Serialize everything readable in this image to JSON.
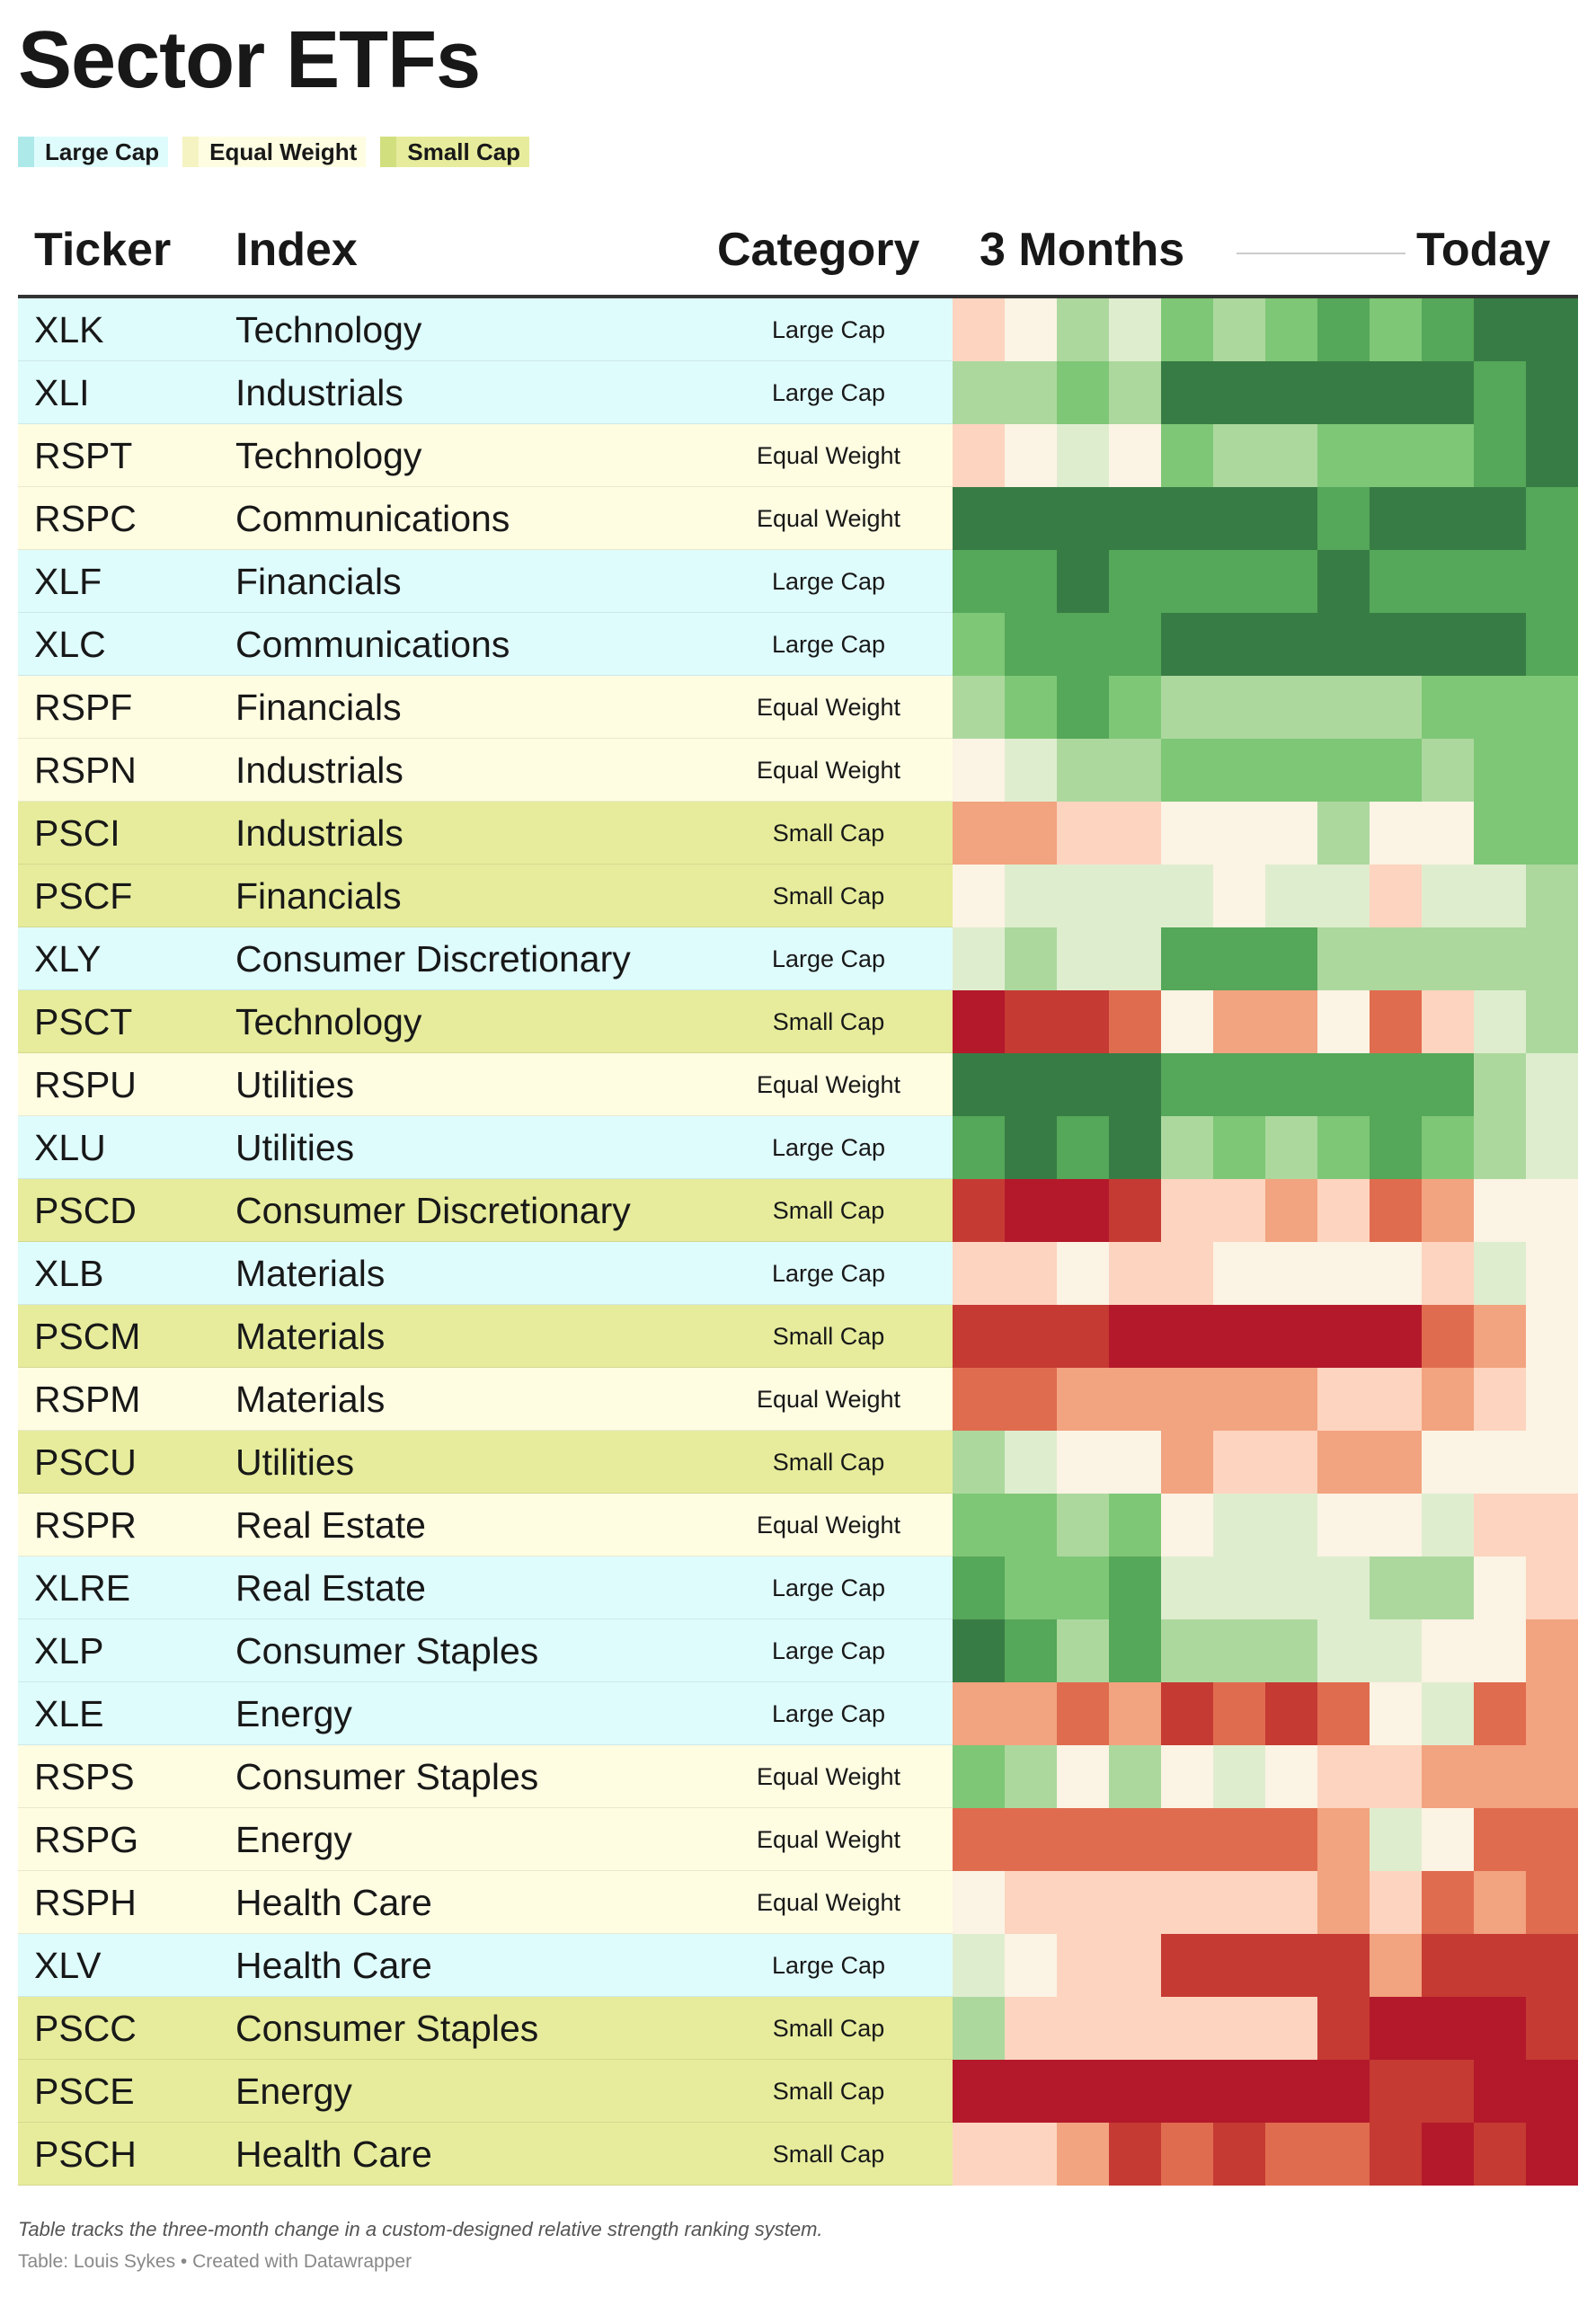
{
  "title": "Sector ETFs",
  "legend": [
    {
      "label": "Large Cap",
      "swatch": "#aee9ea",
      "bg": "#dffcfd"
    },
    {
      "label": "Equal Weight",
      "swatch": "#f5f3c1",
      "bg": "#fefde2"
    },
    {
      "label": "Small Cap",
      "swatch": "#d2df7f",
      "bg": "#e6ec9c"
    }
  ],
  "category_colors": {
    "Large Cap": "#dffcfd",
    "Equal Weight": "#fefde2",
    "Small Cap": "#e6ec9c"
  },
  "columns": {
    "ticker": "Ticker",
    "index": "Index",
    "category": "Category",
    "start": "3 Months",
    "end": "Today"
  },
  "footnote": "Table tracks the three-month change in a custom-designed relative strength ranking system.",
  "credit": "Table: Louis Sykes • Created with Datawrapper",
  "chart_data": {
    "type": "heatmap",
    "scale": "-5 (strongest red) to +5 (strongest green); 0 = neutral",
    "time_columns": 12,
    "rows": [
      {
        "ticker": "XLK",
        "index": "Technology",
        "category": "Large Cap",
        "values": [
          -1,
          0,
          2,
          1,
          3,
          2,
          3,
          4,
          3,
          4,
          5,
          5
        ]
      },
      {
        "ticker": "XLI",
        "index": "Industrials",
        "category": "Large Cap",
        "values": [
          2,
          2,
          3,
          2,
          5,
          5,
          5,
          5,
          5,
          5,
          4,
          5
        ]
      },
      {
        "ticker": "RSPT",
        "index": "Technology",
        "category": "Equal Weight",
        "values": [
          -1,
          0,
          1,
          0,
          3,
          2,
          2,
          3,
          3,
          3,
          4,
          5
        ]
      },
      {
        "ticker": "RSPC",
        "index": "Communications",
        "category": "Equal Weight",
        "values": [
          5,
          5,
          5,
          5,
          5,
          5,
          5,
          4,
          5,
          5,
          5,
          4
        ]
      },
      {
        "ticker": "XLF",
        "index": "Financials",
        "category": "Large Cap",
        "values": [
          4,
          4,
          5,
          4,
          4,
          4,
          4,
          5,
          4,
          4,
          4,
          4
        ]
      },
      {
        "ticker": "XLC",
        "index": "Communications",
        "category": "Large Cap",
        "values": [
          3,
          4,
          4,
          4,
          5,
          5,
          5,
          5,
          5,
          5,
          5,
          4
        ]
      },
      {
        "ticker": "RSPF",
        "index": "Financials",
        "category": "Equal Weight",
        "values": [
          2,
          3,
          4,
          3,
          2,
          2,
          2,
          2,
          2,
          3,
          3,
          3
        ]
      },
      {
        "ticker": "RSPN",
        "index": "Industrials",
        "category": "Equal Weight",
        "values": [
          0,
          1,
          2,
          2,
          3,
          3,
          3,
          3,
          3,
          2,
          3,
          3
        ]
      },
      {
        "ticker": "PSCI",
        "index": "Industrials",
        "category": "Small Cap",
        "values": [
          -2,
          -2,
          -1,
          -1,
          0,
          0,
          0,
          2,
          0,
          0,
          3,
          3
        ]
      },
      {
        "ticker": "PSCF",
        "index": "Financials",
        "category": "Small Cap",
        "values": [
          0,
          1,
          1,
          1,
          1,
          0,
          1,
          1,
          -1,
          1,
          1,
          2
        ]
      },
      {
        "ticker": "XLY",
        "index": "Consumer Discretionary",
        "category": "Large Cap",
        "values": [
          1,
          2,
          1,
          1,
          4,
          4,
          4,
          2,
          2,
          2,
          2,
          2
        ]
      },
      {
        "ticker": "PSCT",
        "index": "Technology",
        "category": "Small Cap",
        "values": [
          -5,
          -4,
          -4,
          -3,
          0,
          -2,
          -2,
          0,
          -3,
          -1,
          1,
          2
        ]
      },
      {
        "ticker": "RSPU",
        "index": "Utilities",
        "category": "Equal Weight",
        "values": [
          5,
          5,
          5,
          5,
          4,
          4,
          4,
          4,
          4,
          4,
          2,
          1
        ]
      },
      {
        "ticker": "XLU",
        "index": "Utilities",
        "category": "Large Cap",
        "values": [
          4,
          5,
          4,
          5,
          2,
          3,
          2,
          3,
          4,
          3,
          2,
          1
        ]
      },
      {
        "ticker": "PSCD",
        "index": "Consumer Discretionary",
        "category": "Small Cap",
        "values": [
          -4,
          -5,
          -5,
          -4,
          -1,
          -1,
          -2,
          -1,
          -3,
          -2,
          0,
          0
        ]
      },
      {
        "ticker": "XLB",
        "index": "Materials",
        "category": "Large Cap",
        "values": [
          -1,
          -1,
          0,
          -1,
          -1,
          0,
          0,
          0,
          0,
          -1,
          1,
          0
        ]
      },
      {
        "ticker": "PSCM",
        "index": "Materials",
        "category": "Small Cap",
        "values": [
          -4,
          -4,
          -4,
          -5,
          -5,
          -5,
          -5,
          -5,
          -5,
          -3,
          -2,
          0
        ]
      },
      {
        "ticker": "RSPM",
        "index": "Materials",
        "category": "Equal Weight",
        "values": [
          -3,
          -3,
          -2,
          -2,
          -2,
          -2,
          -2,
          -1,
          -1,
          -2,
          -1,
          0
        ]
      },
      {
        "ticker": "PSCU",
        "index": "Utilities",
        "category": "Small Cap",
        "values": [
          2,
          1,
          0,
          0,
          -2,
          -1,
          -1,
          -2,
          -2,
          0,
          0,
          0
        ]
      },
      {
        "ticker": "RSPR",
        "index": "Real Estate",
        "category": "Equal Weight",
        "values": [
          3,
          3,
          2,
          3,
          0,
          1,
          1,
          0,
          0,
          1,
          -1,
          -1
        ]
      },
      {
        "ticker": "XLRE",
        "index": "Real Estate",
        "category": "Large Cap",
        "values": [
          4,
          3,
          3,
          4,
          1,
          1,
          1,
          1,
          2,
          2,
          0,
          -1
        ]
      },
      {
        "ticker": "XLP",
        "index": "Consumer Staples",
        "category": "Large Cap",
        "values": [
          5,
          4,
          2,
          4,
          2,
          2,
          2,
          1,
          1,
          0,
          0,
          -2
        ]
      },
      {
        "ticker": "XLE",
        "index": "Energy",
        "category": "Large Cap",
        "values": [
          -2,
          -2,
          -3,
          -2,
          -4,
          -3,
          -4,
          -3,
          0,
          1,
          -3,
          -2
        ]
      },
      {
        "ticker": "RSPS",
        "index": "Consumer Staples",
        "category": "Equal Weight",
        "values": [
          3,
          2,
          0,
          2,
          0,
          1,
          0,
          -1,
          -1,
          -2,
          -2,
          -2
        ]
      },
      {
        "ticker": "RSPG",
        "index": "Energy",
        "category": "Equal Weight",
        "values": [
          -3,
          -3,
          -3,
          -3,
          -3,
          -3,
          -3,
          -2,
          1,
          0,
          -3,
          -3
        ]
      },
      {
        "ticker": "RSPH",
        "index": "Health Care",
        "category": "Equal Weight",
        "values": [
          0,
          -1,
          -1,
          -1,
          -1,
          -1,
          -1,
          -2,
          -1,
          -3,
          -2,
          -3
        ]
      },
      {
        "ticker": "XLV",
        "index": "Health Care",
        "category": "Large Cap",
        "values": [
          1,
          0,
          -1,
          -1,
          -4,
          -4,
          -4,
          -4,
          -2,
          -4,
          -4,
          -4
        ]
      },
      {
        "ticker": "PSCC",
        "index": "Consumer Staples",
        "category": "Small Cap",
        "values": [
          2,
          -1,
          -1,
          -1,
          -1,
          -1,
          -1,
          -4,
          -5,
          -5,
          -5,
          -4
        ]
      },
      {
        "ticker": "PSCE",
        "index": "Energy",
        "category": "Small Cap",
        "values": [
          -5,
          -5,
          -5,
          -5,
          -5,
          -5,
          -5,
          -5,
          -4,
          -4,
          -5,
          -5
        ]
      },
      {
        "ticker": "PSCH",
        "index": "Health Care",
        "category": "Small Cap",
        "values": [
          -1,
          -1,
          -2,
          -4,
          -3,
          -4,
          -3,
          -3,
          -4,
          -5,
          -4,
          -5
        ]
      }
    ],
    "palette": {
      "-5": "#b3192b",
      "-4": "#c53a33",
      "-3": "#e06c4f",
      "-2": "#f2a37f",
      "-1": "#fdd4bf",
      "0": "#fbf3e4",
      "1": "#dfedcf",
      "2": "#acd89e",
      "3": "#7ec776",
      "4": "#55a759",
      "5": "#387c45"
    }
  }
}
